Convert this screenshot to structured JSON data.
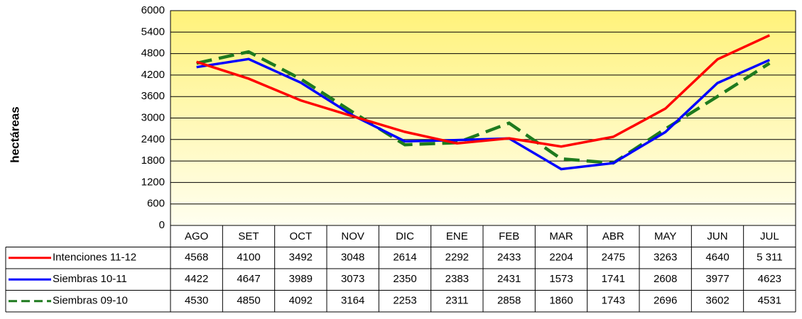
{
  "chart_data": {
    "type": "line",
    "y_label": "hectáreas",
    "categories": [
      "AGO",
      "SET",
      "OCT",
      "NOV",
      "DIC",
      "ENE",
      "FEB",
      "MAR",
      "ABR",
      "MAY",
      "JUN",
      "JUL"
    ],
    "series": [
      {
        "name": "Intenciones 11-12",
        "color": "#ff0000",
        "dashed": false,
        "values": [
          4568,
          4100,
          3492,
          3048,
          2614,
          2292,
          2433,
          2204,
          2475,
          3263,
          4640,
          5311
        ],
        "value_labels": [
          "4568",
          "4100",
          "3492",
          "3048",
          "2614",
          "2292",
          "2433",
          "2204",
          "2475",
          "3263",
          "4640",
          "5 311"
        ]
      },
      {
        "name": "Siembras 10-11",
        "color": "#0000ff",
        "dashed": false,
        "values": [
          4422,
          4647,
          3989,
          3073,
          2350,
          2383,
          2431,
          1573,
          1741,
          2608,
          3977,
          4623
        ]
      },
      {
        "name": "Siembras 09-10",
        "color": "#1e7a1e",
        "dashed": true,
        "values": [
          4530,
          4850,
          4092,
          3164,
          2253,
          2311,
          2858,
          1860,
          1743,
          2696,
          3602,
          4531
        ]
      }
    ],
    "ylim": [
      0,
      6000
    ],
    "yticks": [
      0,
      600,
      1200,
      1800,
      2400,
      3000,
      3600,
      4200,
      4800,
      5400,
      6000
    ],
    "grid": true
  }
}
